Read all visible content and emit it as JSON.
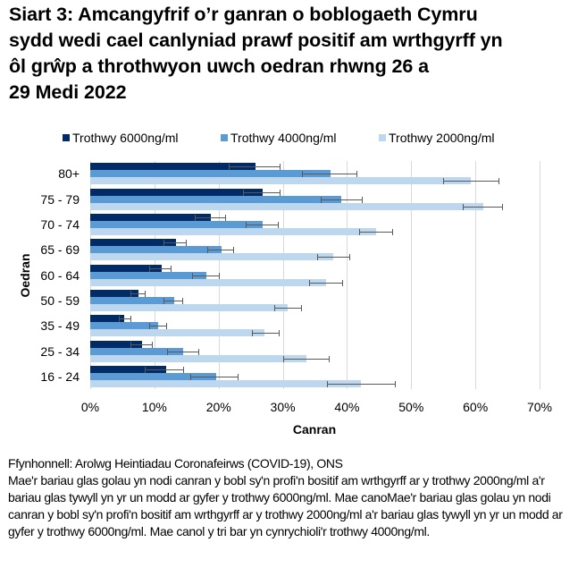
{
  "title": "Siart 3: Amcangyfrif o’r ganran o boblogaeth Cymru sydd wedi cael canlyniad prawf positif am wrthgyrff yn ôl grŵp  a throthwyon uwch oedran rhwng 26 a 29 Medi 2022",
  "title_lines": [
    "Siart 3: Amcangyfrif o’r ganran o boblogaeth Cymru",
    "sydd wedi cael canlyniad prawf positif am wrthgyrff yn",
    "ôl grŵp  a throthwyon uwch oedran rhwng 26 a",
    "29 Medi 2022"
  ],
  "legend": [
    {
      "label": "Trothwy 6000ng/ml",
      "color": "#002B66"
    },
    {
      "label": "Trothwy 4000ng/ml",
      "color": "#5B9BD5"
    },
    {
      "label": "Trothwy 2000ng/ml",
      "color": "#BDD7EE"
    }
  ],
  "footer": {
    "source": "Ffynhonnell: Arolwg Heintiadau Coronafeirws (COVID-19), ONS",
    "note": "Mae'r bariau glas golau yn nodi canran y bobl sy'n profi'n bositif am wrthgyrff ar y trothwy 2000ng/ml a'r bariau glas tywyll yn yr un modd ar gyfer y trothwy 6000ng/ml. Mae canoMae'r bariau glas golau yn nodi canran y bobl sy'n profi'n bositif am wrthgyrff ar y trothwy 2000ng/ml a'r bariau glas tywyll yn yr un modd ar gyfer y trothwy 6000ng/ml. Mae canol y tri bar yn cynrychioli'r trothwy 4000ng/ml."
  },
  "chart_data": {
    "type": "bar",
    "orientation": "horizontal",
    "title": "Siart 3: Amcangyfrif o’r ganran o boblogaeth Cymru sydd wedi cael canlyniad prawf positif am wrthgyrff yn ôl grŵp  a throthwyon uwch oedran rhwng 26 a 29 Medi 2022",
    "xlabel": "Canran",
    "ylabel": "Oedran",
    "xlim": [
      0,
      70
    ],
    "x_ticks": [
      "0%",
      "10%",
      "20%",
      "30%",
      "40%",
      "50%",
      "60%",
      "70%"
    ],
    "grid": true,
    "legend_position": "top",
    "categories": [
      "80+",
      "75 - 79",
      "70 - 74",
      "65 - 69",
      "60 - 64",
      "50 - 59",
      "35 - 49",
      "25 - 34",
      "16 - 24"
    ],
    "series": [
      {
        "name": "Trothwy 6000ng/ml",
        "color": "#002B66",
        "values": [
          25.8,
          26.9,
          18.8,
          13.4,
          11.1,
          7.5,
          5.3,
          8.1,
          11.8
        ],
        "lower": [
          21.6,
          23.8,
          16.3,
          11.4,
          9.2,
          6.3,
          4.4,
          6.2,
          8.5
        ],
        "upper": [
          29.5,
          29.5,
          21.0,
          14.9,
          12.5,
          8.5,
          6.2,
          9.6,
          14.5
        ]
      },
      {
        "name": "Trothwy 4000ng/ml",
        "color": "#5B9BD5",
        "values": [
          37.5,
          39.1,
          26.9,
          20.5,
          18.1,
          13.1,
          10.6,
          14.5,
          19.6
        ],
        "lower": [
          33.0,
          35.9,
          24.2,
          18.2,
          15.9,
          11.4,
          9.2,
          12.0,
          15.6
        ],
        "upper": [
          41.5,
          42.3,
          29.2,
          22.3,
          20.1,
          14.3,
          11.8,
          16.9,
          23.0
        ]
      },
      {
        "name": "Trothwy 2000ng/ml",
        "color": "#BDD7EE",
        "values": [
          59.3,
          61.3,
          44.6,
          37.9,
          36.8,
          30.8,
          27.2,
          33.7,
          42.1
        ],
        "lower": [
          55.0,
          58.1,
          41.9,
          35.4,
          34.1,
          28.7,
          25.2,
          30.1,
          36.9
        ],
        "upper": [
          63.6,
          64.2,
          47.1,
          40.4,
          39.3,
          32.9,
          29.4,
          37.1,
          47.5
        ]
      }
    ]
  }
}
